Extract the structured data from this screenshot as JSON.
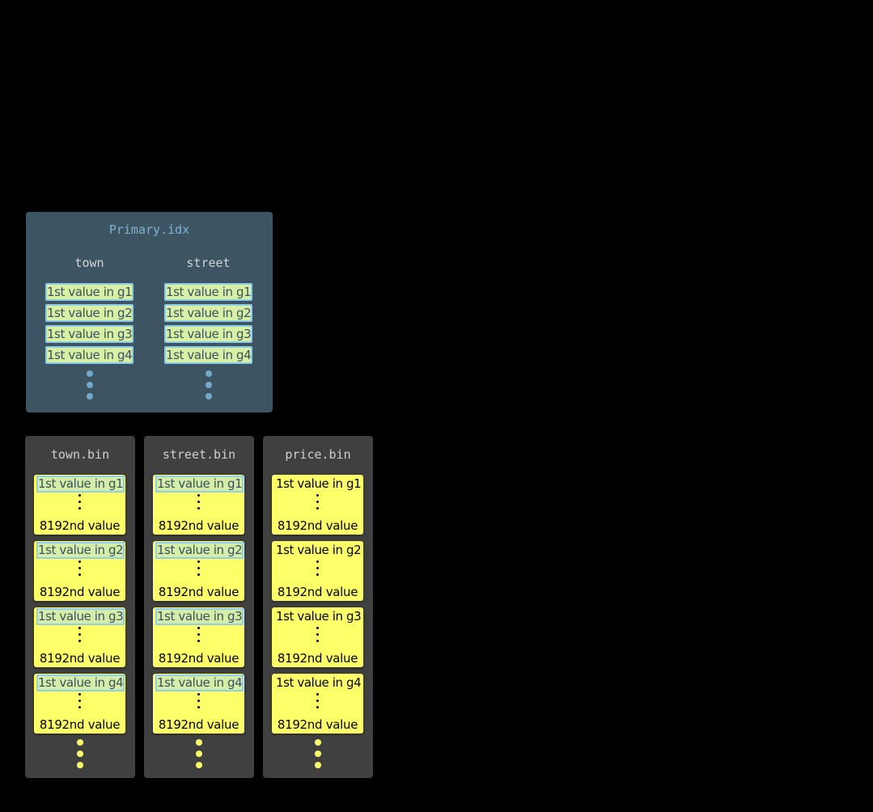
{
  "primary_index": {
    "title": "Primary.idx",
    "columns": [
      {
        "name": "town",
        "marks": [
          "1st value in g1",
          "1st value in g2",
          "1st value in g3",
          "1st value in g4"
        ]
      },
      {
        "name": "street",
        "marks": [
          "1st value in g1",
          "1st value in g2",
          "1st value in g3",
          "1st value in g4"
        ]
      }
    ]
  },
  "column_files": [
    {
      "name": "town.bin",
      "highlight_first": true,
      "granules": [
        {
          "first": "1st value in g1",
          "last": "8192nd value"
        },
        {
          "first": "1st value in g2",
          "last": "8192nd value"
        },
        {
          "first": "1st value in g3",
          "last": "8192nd value"
        },
        {
          "first": "1st value in g4",
          "last": "8192nd value"
        }
      ]
    },
    {
      "name": "street.bin",
      "highlight_first": true,
      "granules": [
        {
          "first": "1st value in g1",
          "last": "8192nd value"
        },
        {
          "first": "1st value in g2",
          "last": "8192nd value"
        },
        {
          "first": "1st value in g3",
          "last": "8192nd value"
        },
        {
          "first": "1st value in g4",
          "last": "8192nd value"
        }
      ]
    },
    {
      "name": "price.bin",
      "highlight_first": false,
      "granules": [
        {
          "first": "1st value in g1",
          "last": "8192nd value"
        },
        {
          "first": "1st value in g2",
          "last": "8192nd value"
        },
        {
          "first": "1st value in g3",
          "last": "8192nd value"
        },
        {
          "first": "1st value in g4",
          "last": "8192nd value"
        }
      ]
    }
  ],
  "colors": {
    "index_panel": "#3d5463",
    "bin_panel": "#404040",
    "granule": "#ffff6a",
    "mark": "#d8f0a6",
    "mark_border": "#8bcbe6"
  }
}
